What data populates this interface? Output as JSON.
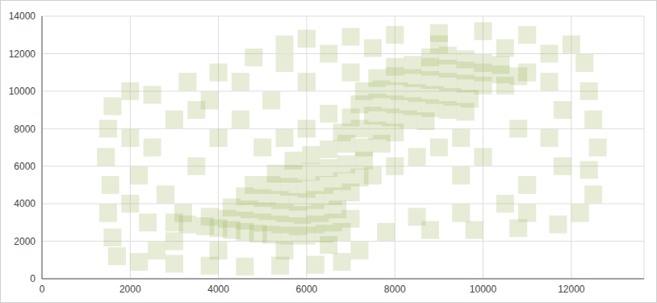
{
  "chart_data": {
    "type": "scatter",
    "marker": "square",
    "color": "#9bb35a",
    "grid": true,
    "xlim": [
      0,
      13650
    ],
    "xticks": [
      0,
      2000,
      4000,
      6000,
      8000,
      10000,
      12000
    ],
    "ylim": [
      0,
      14000
    ],
    "yticks": [
      0,
      2000,
      4000,
      6000,
      8000,
      10000,
      12000,
      14000
    ],
    "x": [
      1500,
      1450,
      1550,
      1500,
      1600,
      1700,
      1600,
      2000,
      2500,
      2200,
      3000,
      3800,
      4600,
      5400,
      6200,
      6800,
      7200,
      7800,
      8800,
      9800,
      10800,
      11700,
      12200,
      12500,
      12400,
      12600,
      12500,
      12400,
      12300,
      12000,
      11000,
      10000,
      9000,
      8000,
      7000,
      6000,
      5500,
      4800,
      4000,
      3300,
      2500,
      2200,
      2800,
      2400,
      3000,
      3000,
      3800,
      4500,
      5500,
      6500,
      7500,
      9000,
      10500,
      11500,
      11500,
      11800,
      11500,
      11800,
      11000,
      10500,
      9500,
      8500,
      11000,
      10000,
      10800,
      9500,
      4000,
      3500,
      4500,
      5200,
      2000,
      2000,
      3200,
      4000,
      5500,
      6500,
      2600,
      6000,
      7000,
      3500,
      3000,
      3300,
      3700,
      4000,
      4300,
      4600,
      4900,
      5200,
      5600,
      6000,
      6400,
      6800,
      3800,
      4200,
      4600,
      5000,
      5400,
      5800,
      6200,
      6600,
      7000,
      4300,
      4700,
      5100,
      5500,
      5900,
      6300,
      6700,
      4600,
      5000,
      5400,
      5800,
      6200,
      6600,
      7000,
      4800,
      5200,
      5600,
      6000,
      6400,
      6800,
      7200,
      5300,
      5700,
      6100,
      6500,
      6900,
      7300,
      5700,
      6100,
      6500,
      6900,
      7300,
      7700,
      6800,
      7200,
      7600,
      8000,
      7000,
      7500,
      7900,
      8300,
      8700,
      7200,
      7600,
      8000,
      8400,
      8800,
      9200,
      9600,
      7300,
      7700,
      8100,
      8500,
      8900,
      9300,
      9700,
      7600,
      8000,
      8400,
      8800,
      9200,
      9600,
      10000,
      8000,
      8400,
      8800,
      9200,
      9600,
      10000,
      10400,
      8800,
      9200,
      9600,
      10000,
      10400,
      10800,
      11000,
      10500,
      8500,
      9000,
      9500,
      7500,
      8000,
      5000,
      5500,
      6000,
      6500
    ],
    "values": [
      8000,
      6500,
      5000,
      3500,
      2200,
      1200,
      9200,
      10000,
      9800,
      900,
      800,
      700,
      650,
      700,
      750,
      900,
      1500,
      2500,
      2600,
      2600,
      2700,
      2900,
      3500,
      4500,
      5800,
      7000,
      8500,
      10000,
      11500,
      12500,
      13000,
      13200,
      13100,
      13000,
      12900,
      12800,
      12500,
      11800,
      11000,
      10500,
      7000,
      5500,
      4500,
      3000,
      2000,
      8500,
      9500,
      10500,
      11500,
      12000,
      12300,
      12500,
      12300,
      12000,
      10500,
      9000,
      7500,
      6000,
      5000,
      4000,
      3500,
      3300,
      3500,
      6500,
      8000,
      5500,
      7500,
      6000,
      8500,
      9500,
      4000,
      7500,
      3500,
      1500,
      1500,
      1800,
      1500,
      10500,
      11000,
      9000,
      3000,
      2900,
      2800,
      2700,
      2600,
      2500,
      2400,
      2350,
      2300,
      2300,
      2400,
      2500,
      3300,
      3200,
      3100,
      3000,
      2900,
      2800,
      2900,
      3000,
      3200,
      3800,
      3700,
      3600,
      3500,
      3400,
      3500,
      3700,
      4400,
      4300,
      4200,
      4100,
      4200,
      4400,
      4600,
      5000,
      5000,
      4900,
      4800,
      5000,
      5200,
      5400,
      5600,
      5600,
      5700,
      5900,
      6100,
      6300,
      6300,
      6600,
      6900,
      7200,
      7000,
      7200,
      7800,
      8000,
      7900,
      7800,
      8600,
      8700,
      8600,
      8500,
      8400,
      9300,
      9400,
      9300,
      9200,
      9100,
      9000,
      8900,
      10000,
      10100,
      10000,
      9900,
      9800,
      9700,
      9600,
      10700,
      10800,
      10700,
      10600,
      10500,
      10400,
      10300,
      11300,
      11400,
      11300,
      11200,
      11100,
      11000,
      10900,
      11800,
      11900,
      11700,
      11500,
      11400,
      10800,
      11000,
      10300,
      6500,
      7000,
      7500,
      5500,
      6000,
      7000,
      7500,
      8000,
      8800
    ]
  }
}
